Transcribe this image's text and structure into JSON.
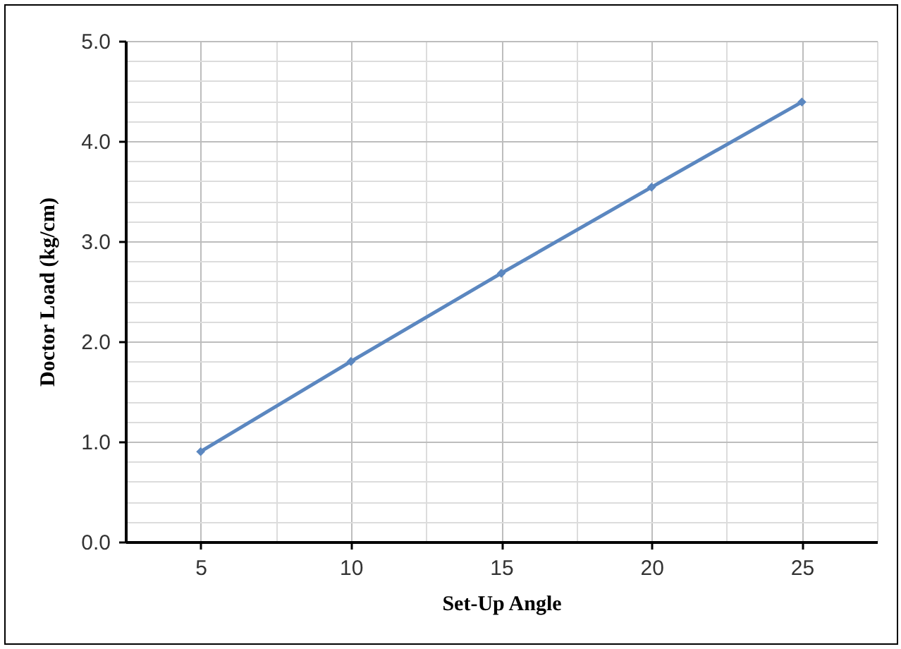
{
  "chart_data": {
    "type": "line",
    "xlabel": "Set-Up Angle",
    "ylabel": "Doctor Load (kg/cm)",
    "x": [
      5,
      10,
      15,
      20,
      25
    ],
    "series": [
      {
        "color": "#5b87c0",
        "values": [
          0.9,
          1.8,
          2.68,
          3.54,
          4.39
        ]
      }
    ],
    "xlim": [
      2.5,
      27.5
    ],
    "xticks": [
      {
        "value": 2.5,
        "label": null
      },
      5,
      {
        "value": 7.5,
        "label": null
      },
      10,
      {
        "value": 12.5,
        "label": null
      },
      15,
      {
        "value": 17.5,
        "label": null
      },
      20,
      {
        "value": 22.5,
        "label": null
      },
      25,
      {
        "value": 27.5,
        "label": null
      }
    ],
    "ylim": [
      0,
      5
    ],
    "yticks": [
      {
        "value": 0,
        "label": "0.0"
      },
      {
        "value": 0.2,
        "label": null
      },
      {
        "value": 0.4,
        "label": null
      },
      {
        "value": 0.6,
        "label": null
      },
      {
        "value": 0.8,
        "label": null
      },
      {
        "value": 1,
        "label": "1.0"
      },
      {
        "value": 1.2,
        "label": null
      },
      {
        "value": 1.4,
        "label": null
      },
      {
        "value": 1.6,
        "label": null
      },
      {
        "value": 1.8,
        "label": null
      },
      {
        "value": 2,
        "label": "2.0"
      },
      {
        "value": 2.2,
        "label": null
      },
      {
        "value": 2.4,
        "label": null
      },
      {
        "value": 2.6,
        "label": null
      },
      {
        "value": 2.8,
        "label": null
      },
      {
        "value": 3,
        "label": "3.0"
      },
      {
        "value": 3.2,
        "label": null
      },
      {
        "value": 3.4,
        "label": null
      },
      {
        "value": 3.6,
        "label": null
      },
      {
        "value": 3.8,
        "label": null
      },
      {
        "value": 4,
        "label": "4.0"
      },
      {
        "value": 4.2,
        "label": null
      },
      {
        "value": 4.4,
        "label": null
      },
      {
        "value": 4.6,
        "label": null
      },
      {
        "value": 4.8,
        "label": null
      },
      {
        "value": 5,
        "label": "5.0"
      }
    ],
    "grid": true,
    "marker": "diamond",
    "line_style": "solid",
    "legend": false
  }
}
